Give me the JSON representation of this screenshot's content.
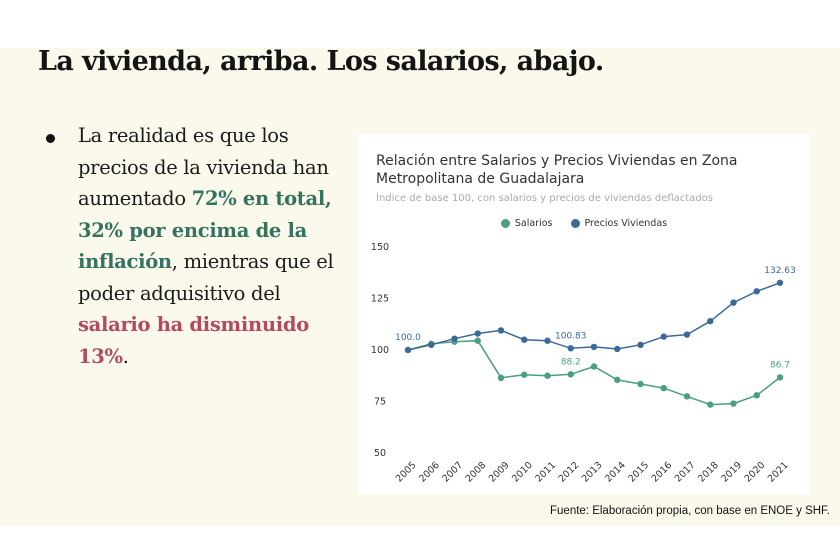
{
  "slide": {
    "title": "La vivienda, arriba. Los salarios, abajo.",
    "bullet": {
      "part1": "La realidad es que los precios de la vivienda han aumentado ",
      "highlight1": "72% en total, 32% por encima de la inflación",
      "part2": ", mientras que el poder adquisitivo del ",
      "highlight2": "salario ha disminuido 13%",
      "part3": "."
    },
    "source": "Fuente: Elaboración propia, con base en ENOE y SHF."
  },
  "colors": {
    "salarios": "#4a9e85",
    "viviendas": "#3b6a98",
    "highlight_green": "#33735f",
    "highlight_red": "#b34a62"
  },
  "chart_data": {
    "type": "line",
    "title": "Relación entre Salarios y Precios Viviendas en Zona Metropolitana de Guadalajara",
    "subtitle": "Índice de base 100, con salarios y precios de viviendas deflactados",
    "x": [
      "2005",
      "2006",
      "2007",
      "2008",
      "2009",
      "2010",
      "2011",
      "2012",
      "2013",
      "2014",
      "2015",
      "2016",
      "2017",
      "2018",
      "2019",
      "2020",
      "2021"
    ],
    "ylim": [
      50,
      150
    ],
    "yticks": [
      50,
      75,
      100,
      125,
      150
    ],
    "legend_position": "top-center",
    "series": [
      {
        "name": "Salarios",
        "color": "#4a9e85",
        "values": [
          100,
          103,
          104,
          104.5,
          86.5,
          88,
          87.5,
          88.2,
          92,
          85.5,
          83.5,
          81.5,
          77.5,
          73.5,
          74,
          78,
          86.7
        ]
      },
      {
        "name": "Precios Viviendas",
        "color": "#3b6a98",
        "values": [
          100,
          102.5,
          105.5,
          108,
          109.5,
          105,
          104.5,
          100.83,
          101.5,
          100.5,
          102.5,
          106.5,
          107.5,
          114,
          123,
          128.5,
          132.63
        ]
      }
    ],
    "annotations": [
      {
        "series": 1,
        "index": 0,
        "label": "100.0"
      },
      {
        "series": 1,
        "index": 7,
        "label": "100.83"
      },
      {
        "series": 1,
        "index": 16,
        "label": "132.63"
      },
      {
        "series": 0,
        "index": 7,
        "label": "88.2"
      },
      {
        "series": 0,
        "index": 16,
        "label": "86.7"
      }
    ]
  }
}
